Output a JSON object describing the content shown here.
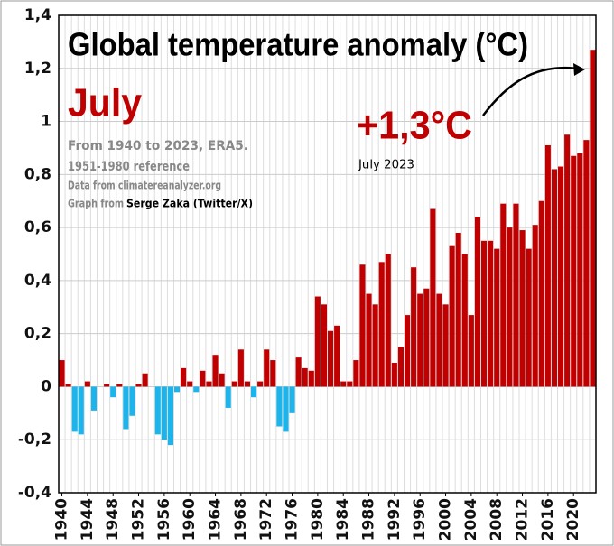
{
  "chart_data": {
    "type": "bar",
    "title": "Global temperature anomaly (°C)",
    "subtitle": "July",
    "annotations": {
      "period": "From 1940 to 2023, ERA5.",
      "reference": "1951-1980 reference",
      "source": "Data from climatereanalyzer.org",
      "credit_prefix": "Graph from",
      "credit_name": "Serge Zaka (Twitter/X)",
      "highlight": "+1,3°C",
      "highlight_label": "July 2023"
    },
    "x": [
      1940,
      1941,
      1942,
      1943,
      1944,
      1945,
      1946,
      1947,
      1948,
      1949,
      1950,
      1951,
      1952,
      1953,
      1954,
      1955,
      1956,
      1957,
      1958,
      1959,
      1960,
      1961,
      1962,
      1963,
      1964,
      1965,
      1966,
      1967,
      1968,
      1969,
      1970,
      1971,
      1972,
      1973,
      1974,
      1975,
      1976,
      1977,
      1978,
      1979,
      1980,
      1981,
      1982,
      1983,
      1984,
      1985,
      1986,
      1987,
      1988,
      1989,
      1990,
      1991,
      1992,
      1993,
      1994,
      1995,
      1996,
      1997,
      1998,
      1999,
      2000,
      2001,
      2002,
      2003,
      2004,
      2005,
      2006,
      2007,
      2008,
      2009,
      2010,
      2011,
      2012,
      2013,
      2014,
      2015,
      2016,
      2017,
      2018,
      2019,
      2020,
      2021,
      2022,
      2023
    ],
    "values": [
      0.1,
      0.01,
      -0.17,
      -0.18,
      0.02,
      -0.09,
      0,
      0.01,
      -0.04,
      0.01,
      -0.16,
      -0.11,
      0.01,
      0.05,
      0,
      -0.18,
      -0.2,
      -0.22,
      -0.02,
      0.07,
      0.02,
      -0.02,
      0.06,
      0.02,
      0.12,
      0.05,
      -0.08,
      0.02,
      0.14,
      0.02,
      -0.04,
      0.02,
      0.14,
      0.1,
      -0.15,
      -0.17,
      -0.1,
      0.11,
      0.07,
      0.06,
      0.34,
      0.31,
      0.21,
      0.23,
      0.02,
      0.02,
      0.1,
      0.46,
      0.35,
      0.31,
      0.47,
      0.5,
      0.09,
      0.15,
      0.27,
      0.45,
      0.35,
      0.37,
      0.67,
      0.35,
      0.31,
      0.53,
      0.58,
      0.5,
      0.27,
      0.64,
      0.55,
      0.55,
      0.52,
      0.69,
      0.6,
      0.69,
      0.59,
      0.52,
      0.61,
      0.7,
      0.91,
      0.82,
      0.83,
      0.95,
      0.87,
      0.88,
      0.93,
      1.27
    ],
    "color_positive": "#c00000",
    "color_negative": "#1cb4ea",
    "xlim": [
      1939.5,
      2023.5
    ],
    "xticks": [
      1940,
      1944,
      1948,
      1952,
      1956,
      1960,
      1964,
      1968,
      1972,
      1976,
      1980,
      1984,
      1988,
      1992,
      1996,
      2000,
      2004,
      2008,
      2012,
      2016,
      2020
    ],
    "ylim": [
      -0.4,
      1.4
    ],
    "yticks": [
      {
        "value": -0.4,
        "label": "-0,4"
      },
      {
        "value": -0.2,
        "label": "-0,2"
      },
      0,
      {
        "value": 0.2,
        "label": "0,2"
      },
      {
        "value": 0.4,
        "label": "0,4"
      },
      {
        "value": 0.6,
        "label": "0,6"
      },
      {
        "value": 0.8,
        "label": "0,8"
      },
      1,
      {
        "value": 1.2,
        "label": "1,2"
      },
      {
        "value": 1.4,
        "label": "1,4"
      }
    ],
    "grid": true
  }
}
